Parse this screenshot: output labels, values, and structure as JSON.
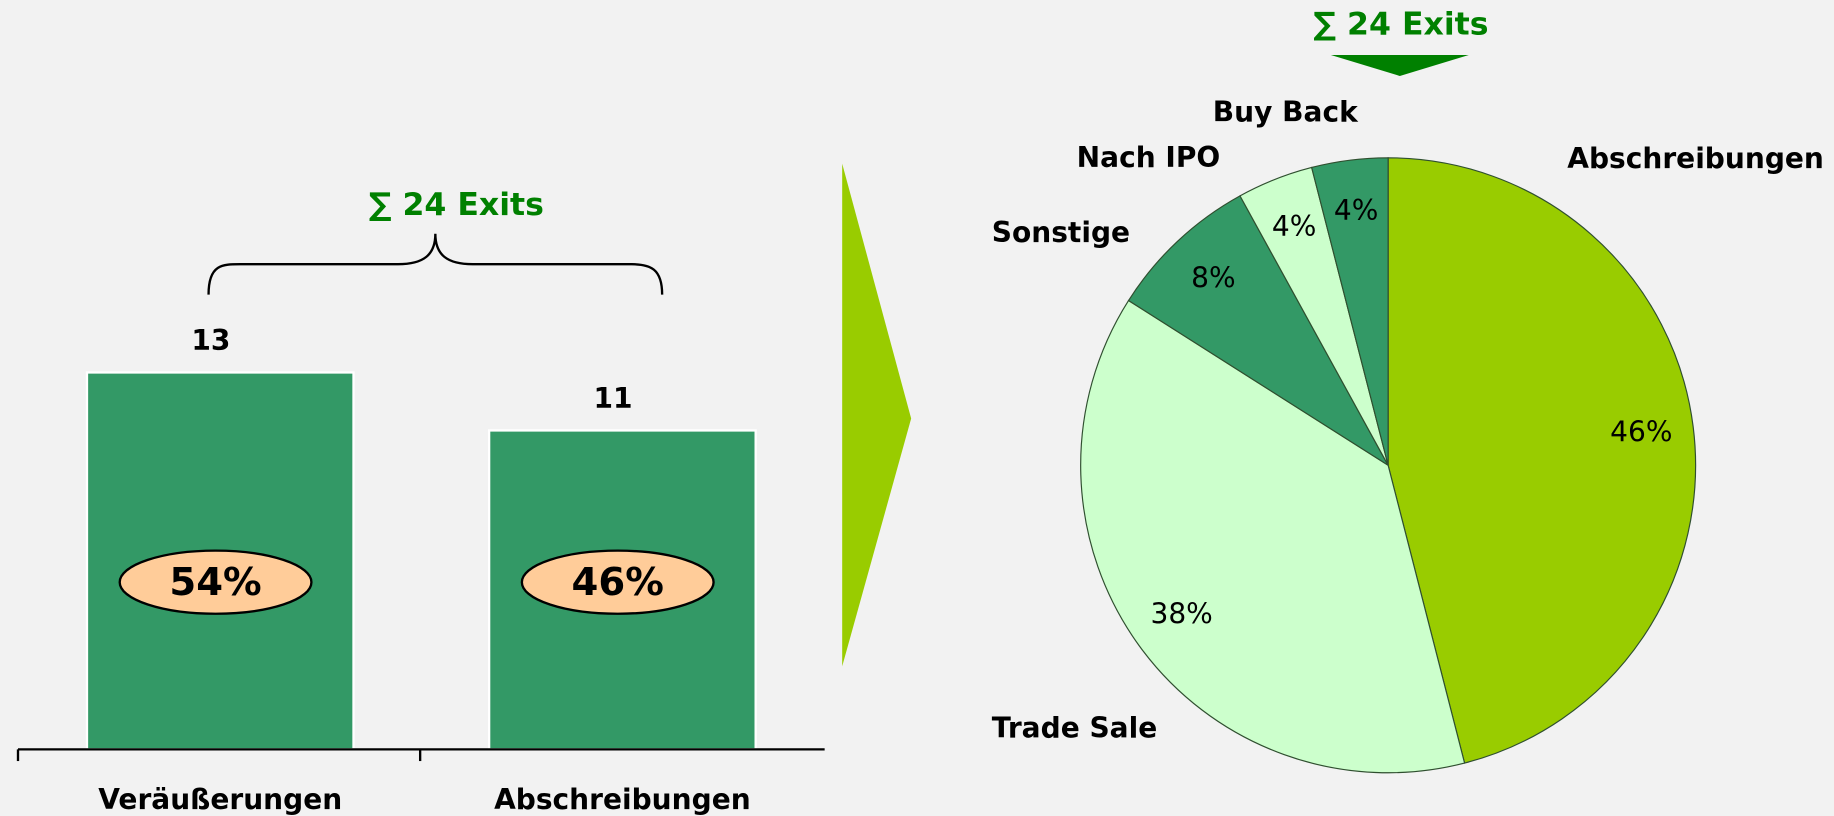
{
  "chart_data": [
    {
      "type": "bar",
      "annotation": "∑ 24 Exits",
      "categories": [
        "Veräußerungen",
        "Abschreibungen"
      ],
      "values": [
        13,
        11
      ],
      "color": "#339966",
      "shares": [
        54,
        46
      ],
      "share_labels": [
        "54%",
        "46%"
      ],
      "share_color": "#ffcc99"
    },
    {
      "type": "pie",
      "annotation": "∑ 24 Exits",
      "categories": [
        "Abschreibungen",
        "Trade Sale",
        "Sonstige",
        "Nach IPO",
        "Buy Back"
      ],
      "values": [
        46,
        38,
        8,
        4,
        4
      ],
      "value_labels": [
        "46%",
        "38%",
        "8%",
        "4%",
        "4%"
      ],
      "colors": [
        "#99cc00",
        "#ccffcc",
        "#339966",
        "#ccffcc",
        "#339966"
      ]
    }
  ]
}
